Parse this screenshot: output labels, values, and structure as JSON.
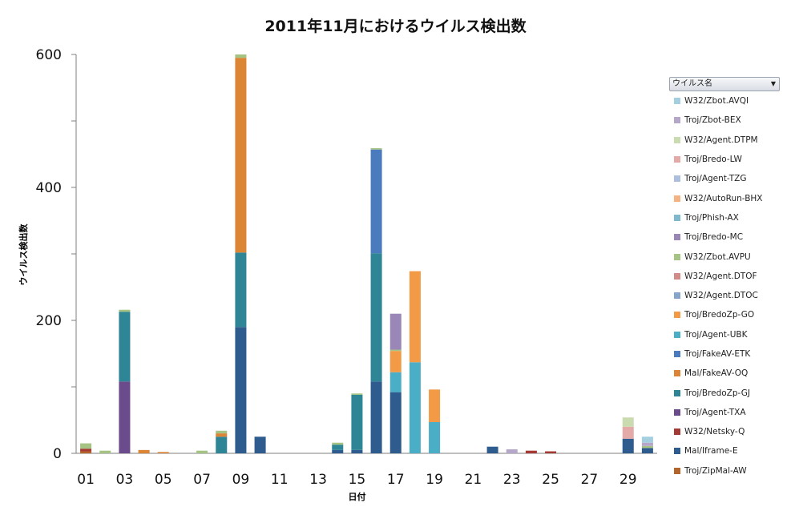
{
  "title": "2011年11月におけるウイルス検出数",
  "chart_data": {
    "type": "bar",
    "stacked": true,
    "xlabel": "日付",
    "ylabel": "ウイルス検出数",
    "ylim": [
      0,
      600
    ],
    "yticks": [
      "0",
      "200",
      "400",
      "600"
    ],
    "x_tick_labels": [
      "01",
      "03",
      "05",
      "07",
      "09",
      "11",
      "13",
      "15",
      "17",
      "19",
      "21",
      "23",
      "25",
      "27",
      "29"
    ],
    "categories": [
      "01",
      "02",
      "03",
      "04",
      "05",
      "06",
      "07",
      "08",
      "09",
      "10",
      "11",
      "12",
      "13",
      "14",
      "15",
      "16",
      "17",
      "18",
      "19",
      "20",
      "21",
      "22",
      "23",
      "24",
      "25",
      "26",
      "27",
      "28",
      "29",
      "30"
    ],
    "legend_title": "ウイルス名",
    "series": [
      {
        "name": "Troj/ZipMal-AW",
        "color": "#b5652b",
        "values": [
          3,
          0,
          0,
          0,
          0,
          0,
          0,
          0,
          0,
          0,
          0,
          0,
          0,
          0,
          0,
          0,
          0,
          0,
          0,
          0,
          0,
          0,
          0,
          0,
          0,
          0,
          0,
          0,
          0,
          0
        ]
      },
      {
        "name": "Mal/Iframe-E",
        "color": "#2f5c8f",
        "values": [
          0,
          0,
          0,
          0,
          0,
          0,
          0,
          0,
          190,
          25,
          0,
          0,
          0,
          5,
          5,
          108,
          92,
          0,
          0,
          0,
          0,
          10,
          0,
          0,
          0,
          0,
          0,
          0,
          22,
          8
        ]
      },
      {
        "name": "W32/Netsky-Q",
        "color": "#a53a35",
        "values": [
          4,
          0,
          0,
          0,
          0,
          0,
          0,
          0,
          0,
          0,
          0,
          0,
          0,
          0,
          0,
          0,
          0,
          0,
          0,
          0,
          0,
          0,
          0,
          4,
          3,
          0,
          0,
          0,
          0,
          0
        ]
      },
      {
        "name": "Troj/Agent-TXA",
        "color": "#6b4b8c",
        "values": [
          0,
          0,
          108,
          0,
          0,
          0,
          0,
          0,
          0,
          0,
          0,
          0,
          0,
          0,
          0,
          0,
          0,
          0,
          0,
          0,
          0,
          0,
          0,
          0,
          0,
          0,
          0,
          0,
          0,
          0
        ]
      },
      {
        "name": "Troj/BredoZp-GJ",
        "color": "#2e8595",
        "values": [
          0,
          0,
          105,
          0,
          0,
          0,
          0,
          25,
          112,
          0,
          0,
          0,
          0,
          8,
          83,
          193,
          0,
          0,
          0,
          0,
          0,
          0,
          0,
          0,
          0,
          0,
          0,
          0,
          0,
          0
        ]
      },
      {
        "name": "Mal/FakeAV-OQ",
        "color": "#db8535",
        "values": [
          0,
          0,
          0,
          5,
          2,
          0,
          0,
          5,
          293,
          0,
          0,
          0,
          0,
          0,
          0,
          0,
          0,
          0,
          0,
          0,
          0,
          0,
          0,
          0,
          0,
          0,
          0,
          0,
          0,
          0
        ]
      },
      {
        "name": "Troj/FakeAV-ETK",
        "color": "#4a7bbf",
        "values": [
          0,
          0,
          0,
          0,
          0,
          0,
          0,
          0,
          0,
          0,
          0,
          0,
          0,
          0,
          0,
          156,
          0,
          0,
          0,
          0,
          0,
          0,
          0,
          0,
          0,
          0,
          0,
          0,
          0,
          0
        ]
      },
      {
        "name": "Troj/Agent-UBK",
        "color": "#4aaec7",
        "values": [
          0,
          0,
          0,
          0,
          0,
          0,
          0,
          0,
          0,
          0,
          0,
          0,
          0,
          0,
          0,
          0,
          30,
          137,
          47,
          0,
          0,
          0,
          0,
          0,
          0,
          0,
          0,
          0,
          0,
          0
        ]
      },
      {
        "name": "Troj/BredoZp-GO",
        "color": "#f39a46",
        "values": [
          0,
          0,
          0,
          0,
          0,
          0,
          0,
          0,
          0,
          0,
          0,
          0,
          0,
          0,
          0,
          0,
          32,
          137,
          49,
          0,
          0,
          0,
          0,
          0,
          0,
          0,
          0,
          0,
          0,
          0
        ]
      },
      {
        "name": "W32/Agent.DTOC",
        "color": "#87a5ca",
        "values": [
          0,
          0,
          0,
          0,
          0,
          0,
          0,
          0,
          0,
          0,
          0,
          0,
          0,
          0,
          0,
          0,
          0,
          0,
          0,
          0,
          0,
          0,
          0,
          0,
          0,
          0,
          0,
          0,
          0,
          0
        ]
      },
      {
        "name": "W32/Agent.DTOF",
        "color": "#d28b88",
        "values": [
          0,
          0,
          0,
          0,
          0,
          0,
          0,
          0,
          0,
          0,
          0,
          0,
          0,
          0,
          0,
          0,
          0,
          0,
          0,
          0,
          0,
          0,
          0,
          0,
          0,
          0,
          0,
          0,
          0,
          0
        ]
      },
      {
        "name": "W32/Zbot.AVPU",
        "color": "#a5c383",
        "values": [
          8,
          4,
          3,
          0,
          0,
          0,
          4,
          4,
          5,
          0,
          0,
          0,
          0,
          3,
          2,
          2,
          2,
          0,
          0,
          0,
          0,
          0,
          0,
          0,
          0,
          0,
          0,
          0,
          0,
          3
        ]
      },
      {
        "name": "Troj/Bredo-MC",
        "color": "#9a87b8",
        "values": [
          0,
          0,
          0,
          0,
          0,
          0,
          0,
          0,
          0,
          0,
          0,
          0,
          0,
          0,
          0,
          0,
          54,
          0,
          0,
          0,
          0,
          0,
          0,
          0,
          0,
          0,
          0,
          0,
          0,
          0
        ]
      },
      {
        "name": "Troj/Phish-AX",
        "color": "#7fb9cf",
        "values": [
          0,
          0,
          0,
          0,
          0,
          0,
          0,
          0,
          0,
          0,
          0,
          0,
          0,
          0,
          0,
          0,
          0,
          0,
          0,
          0,
          0,
          0,
          0,
          0,
          0,
          0,
          0,
          0,
          0,
          0
        ]
      },
      {
        "name": "W32/AutoRun-BHX",
        "color": "#f5b283",
        "values": [
          0,
          0,
          0,
          0,
          0,
          0,
          0,
          0,
          0,
          0,
          0,
          0,
          0,
          0,
          0,
          0,
          0,
          0,
          0,
          0,
          0,
          0,
          0,
          0,
          0,
          0,
          0,
          0,
          0,
          0
        ]
      },
      {
        "name": "Troj/Agent-TZG",
        "color": "#adbfdf",
        "values": [
          0,
          0,
          0,
          0,
          0,
          0,
          0,
          0,
          0,
          0,
          0,
          0,
          0,
          0,
          0,
          0,
          0,
          0,
          0,
          0,
          0,
          0,
          0,
          0,
          0,
          0,
          0,
          0,
          0,
          0
        ]
      },
      {
        "name": "Troj/Bredo-LW",
        "color": "#e3aaa8",
        "values": [
          0,
          0,
          0,
          0,
          0,
          0,
          0,
          0,
          0,
          0,
          0,
          0,
          0,
          0,
          0,
          0,
          0,
          0,
          0,
          0,
          0,
          0,
          0,
          0,
          0,
          0,
          0,
          0,
          18,
          0
        ]
      },
      {
        "name": "W32/Agent.DTPM",
        "color": "#cadcaf",
        "values": [
          0,
          0,
          0,
          0,
          0,
          0,
          0,
          0,
          0,
          0,
          0,
          0,
          0,
          0,
          0,
          0,
          0,
          0,
          0,
          0,
          0,
          0,
          0,
          0,
          0,
          0,
          0,
          0,
          14,
          0
        ]
      },
      {
        "name": "Troj/Zbot-BEX",
        "color": "#b5a7c9",
        "values": [
          0,
          0,
          0,
          0,
          0,
          0,
          0,
          0,
          0,
          0,
          0,
          0,
          0,
          0,
          0,
          0,
          0,
          0,
          0,
          0,
          0,
          0,
          6,
          0,
          0,
          0,
          0,
          0,
          0,
          5
        ]
      },
      {
        "name": "W32/Zbot.AVQI",
        "color": "#a4cfe0",
        "values": [
          0,
          0,
          0,
          0,
          0,
          0,
          0,
          0,
          0,
          0,
          0,
          0,
          0,
          0,
          0,
          0,
          0,
          0,
          0,
          0,
          0,
          0,
          0,
          0,
          0,
          0,
          0,
          0,
          0,
          9
        ]
      }
    ]
  }
}
